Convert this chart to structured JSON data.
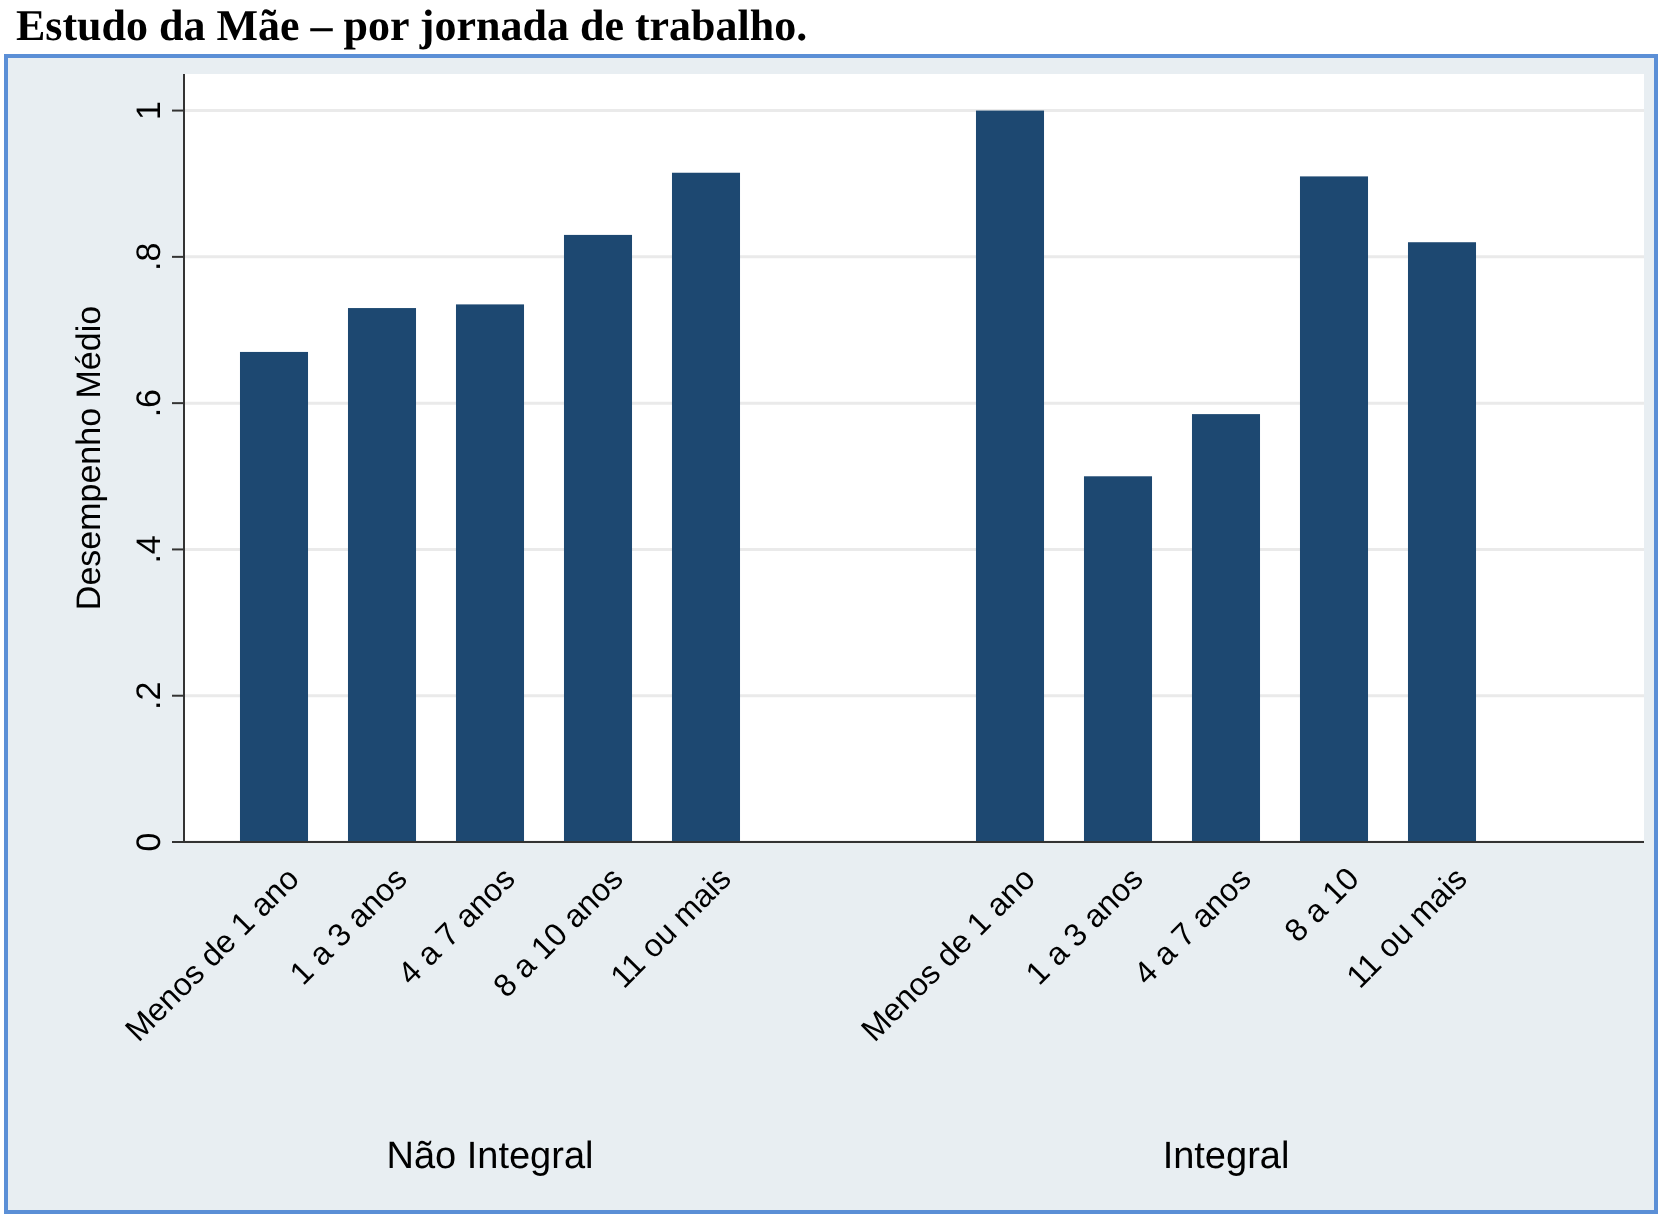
{
  "chart_data": [
    {
      "type": "bar",
      "title": "Estudo da Mãe – por jornada de trabalho.",
      "ylabel": "Desempenho Médio",
      "xlabel": "Não Integral",
      "categories": [
        "Menos de 1 ano",
        "1 a 3 anos",
        "4 a 7 anos",
        "8 a 10 anos",
        "11 ou mais"
      ],
      "values": [
        0.67,
        0.73,
        0.735,
        0.83,
        0.915
      ],
      "color": "#1d4871",
      "ylim": [
        0,
        1.05
      ],
      "yticks": [
        0,
        {
          "value": 0.2,
          "label": ".2"
        },
        {
          "value": 0.4,
          "label": ".4"
        },
        {
          "value": 0.6,
          "label": ".6"
        },
        {
          "value": 0.8,
          "label": ".8"
        },
        1
      ],
      "grid": "y"
    },
    {
      "type": "bar",
      "xlabel": "Integral",
      "categories": [
        "Menos de 1 ano",
        "1 a 3 anos",
        "4 a 7 anos",
        "8 a 10",
        "11 ou mais"
      ],
      "values": [
        1.0,
        0.5,
        0.585,
        0.91,
        0.82
      ],
      "color": "#1d4871",
      "ylim": [
        0,
        1.05
      ],
      "yticks": [
        {
          "value": 0,
          "label": null
        },
        {
          "value": 0.2,
          "label": null
        },
        {
          "value": 0.4,
          "label": null
        },
        {
          "value": 0.6,
          "label": null
        },
        {
          "value": 0.8,
          "label": null
        },
        {
          "value": 1,
          "label": null
        }
      ],
      "grid": "y",
      "tick_labels": "x"
    }
  ]
}
